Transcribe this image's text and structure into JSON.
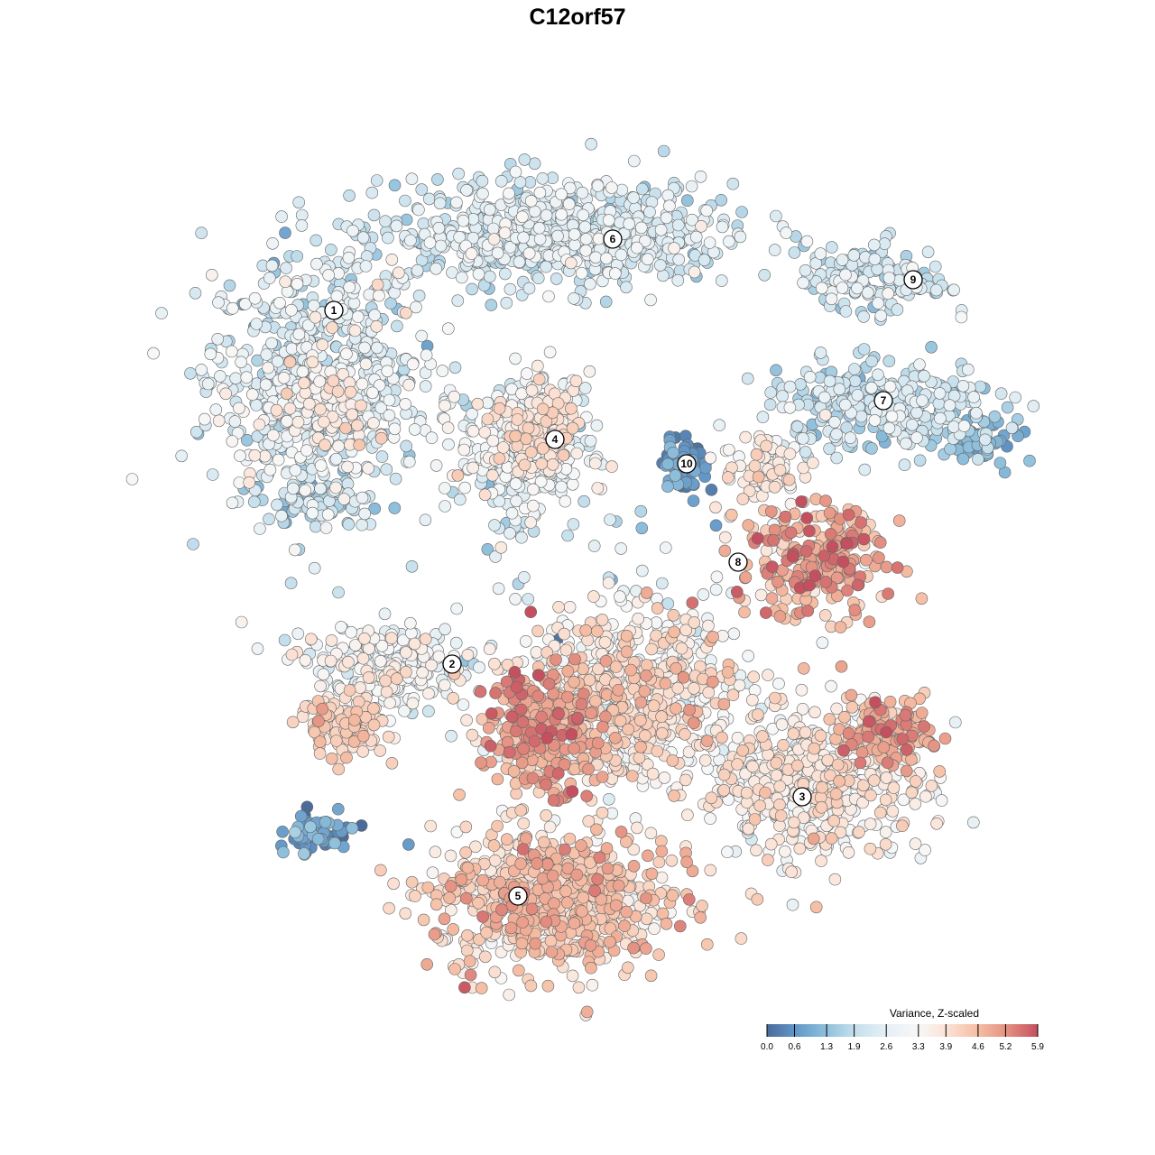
{
  "chart_data": {
    "type": "scatter",
    "title": "C12orf57",
    "xlabel": "",
    "ylabel": "",
    "xlim": [
      -64,
      64
    ],
    "ylim": [
      -64,
      64
    ],
    "grid": false,
    "colorbar": {
      "title": "Variance, Z-scaled",
      "range": [
        0.0,
        5.9
      ],
      "ticks": [
        "0.0",
        "0.6",
        "1.3",
        "1.9",
        "2.6",
        "3.3",
        "3.9",
        "4.6",
        "5.2",
        "5.9"
      ],
      "tick_values": [
        0.0,
        0.6,
        1.3,
        1.9,
        2.6,
        3.3,
        3.9,
        4.6,
        5.2,
        5.9
      ],
      "colors": [
        "#4a6b9b",
        "#6096c8",
        "#8fc0dc",
        "#c4dfec",
        "#e6f0f5",
        "#f7f7f7",
        "#fbe3d6",
        "#f5bda3",
        "#e69383",
        "#c4505f"
      ],
      "placement": "bottom-right"
    },
    "cluster_labels": [
      {
        "label": "1",
        "x": -27,
        "y": 29.6
      },
      {
        "label": "6",
        "x": 3.9,
        "y": 37.5
      },
      {
        "label": "9",
        "x": 37.2,
        "y": 33
      },
      {
        "label": "7",
        "x": 33.9,
        "y": 19.6
      },
      {
        "label": "4",
        "x": -2.5,
        "y": 15.3
      },
      {
        "label": "10",
        "x": 12.1,
        "y": 12.6
      },
      {
        "label": "8",
        "x": 17.8,
        "y": 1.7
      },
      {
        "label": "2",
        "x": -13.9,
        "y": -9.6
      },
      {
        "label": "3",
        "x": 24.9,
        "y": -24.3
      },
      {
        "label": "5",
        "x": -6.6,
        "y": -35.3
      }
    ],
    "point_groups": [
      {
        "cluster": "1",
        "cx": -29,
        "cy": 22,
        "sx": 7.5,
        "sy": 9,
        "n": 700,
        "mean": 2.4,
        "sd": 0.6
      },
      {
        "cluster": "1",
        "cx": -28,
        "cy": 18,
        "sx": 3,
        "sy": 3,
        "n": 80,
        "mean": 3.6,
        "sd": 0.4
      },
      {
        "cluster": "1",
        "cx": -29,
        "cy": 8.5,
        "sx": 3,
        "sy": 1.5,
        "n": 60,
        "mean": 1.6,
        "sd": 0.5
      },
      {
        "cluster": "6",
        "cx": -2,
        "cy": 38,
        "sx": 12,
        "sy": 3.5,
        "n": 700,
        "mean": 2.3,
        "sd": 0.5
      },
      {
        "cluster": "9",
        "cx": 33,
        "cy": 33,
        "sx": 5,
        "sy": 2.5,
        "n": 150,
        "mean": 2.2,
        "sd": 0.5
      },
      {
        "cluster": "7",
        "cx": 34,
        "cy": 19,
        "sx": 8,
        "sy": 3,
        "n": 300,
        "mean": 2.0,
        "sd": 0.5
      },
      {
        "cluster": "7",
        "cx": 45,
        "cy": 15,
        "sx": 2,
        "sy": 1.5,
        "n": 60,
        "mean": 1.2,
        "sd": 0.3
      },
      {
        "cluster": "4",
        "cx": -6,
        "cy": 15,
        "sx": 4.5,
        "sy": 4.5,
        "n": 400,
        "mean": 2.8,
        "sd": 0.6
      },
      {
        "cluster": "4",
        "cx": -4,
        "cy": 17,
        "sx": 2.5,
        "sy": 2.5,
        "n": 80,
        "mean": 3.8,
        "sd": 0.3
      },
      {
        "cluster": "10",
        "cx": 12,
        "cy": 12.5,
        "sx": 1.5,
        "sy": 2,
        "n": 80,
        "mean": 0.6,
        "sd": 0.3
      },
      {
        "cluster": "8",
        "cx": 26,
        "cy": 2,
        "sx": 5,
        "sy": 4,
        "n": 250,
        "mean": 4.7,
        "sd": 0.6
      },
      {
        "cluster": "8",
        "cx": 21,
        "cy": 12,
        "sx": 3,
        "sy": 3,
        "n": 80,
        "mean": 3.6,
        "sd": 0.4
      },
      {
        "cluster": "2",
        "cx": -21,
        "cy": -10,
        "sx": 6,
        "sy": 3,
        "n": 250,
        "mean": 3.0,
        "sd": 0.5
      },
      {
        "cluster": "2",
        "cx": -26,
        "cy": -16.5,
        "sx": 3,
        "sy": 2,
        "n": 120,
        "mean": 4.1,
        "sd": 0.3
      },
      {
        "cluster": "mid",
        "cx": 6,
        "cy": -13,
        "sx": 8,
        "sy": 6,
        "n": 700,
        "mean": 3.6,
        "sd": 0.6
      },
      {
        "cluster": "mid",
        "cx": -4,
        "cy": -17,
        "sx": 4,
        "sy": 4,
        "n": 300,
        "mean": 4.8,
        "sd": 0.5
      },
      {
        "cluster": "3",
        "cx": 26,
        "cy": -23,
        "sx": 8,
        "sy": 5,
        "n": 500,
        "mean": 3.5,
        "sd": 0.5
      },
      {
        "cluster": "3",
        "cx": 34,
        "cy": -17,
        "sx": 3,
        "sy": 2.5,
        "n": 120,
        "mean": 4.8,
        "sd": 0.5
      },
      {
        "cluster": "5",
        "cx": -3,
        "cy": -36,
        "sx": 8,
        "sy": 5,
        "n": 700,
        "mean": 4.2,
        "sd": 0.5
      },
      {
        "cluster": "other",
        "cx": -29,
        "cy": -28.5,
        "sx": 3,
        "sy": 1.5,
        "n": 60,
        "mean": 0.7,
        "sd": 0.4
      },
      {
        "cluster": "other",
        "cx": 0,
        "cy": 4,
        "sx": 12,
        "sy": 6,
        "n": 40,
        "mean": 2.0,
        "sd": 0.7
      }
    ]
  }
}
